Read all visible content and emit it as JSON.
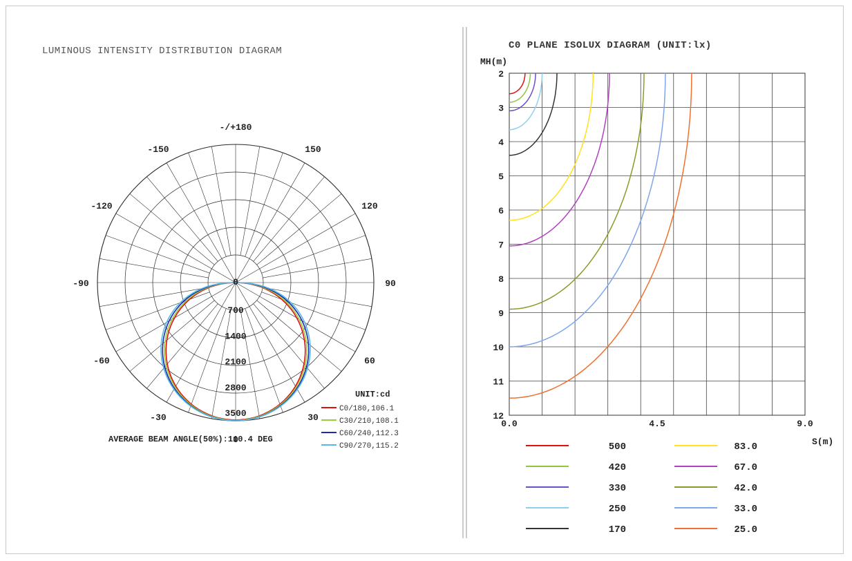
{
  "colors": {
    "background": "#ffffff",
    "grid": "#2a2a2a",
    "frame": "#c8c8c8",
    "divider": "#9a9a9a"
  },
  "chart_data": [
    {
      "type": "polar",
      "title": "LUMINOUS INTENSITY DISTRIBUTION DIAGRAM",
      "angle_labels": [
        {
          "angle": 180,
          "label": "-/+180"
        },
        {
          "angle": -150,
          "label": "-150"
        },
        {
          "angle": 150,
          "label": "150"
        },
        {
          "angle": -120,
          "label": "-120"
        },
        {
          "angle": 120,
          "label": "120"
        },
        {
          "angle": -90,
          "label": "-90"
        },
        {
          "angle": 90,
          "label": "90"
        },
        {
          "angle": -60,
          "label": "-60"
        },
        {
          "angle": 60,
          "label": "60"
        },
        {
          "angle": -30,
          "label": "-30"
        },
        {
          "angle": 30,
          "label": "30"
        },
        {
          "angle": 0,
          "label": "0"
        }
      ],
      "radial_ticks": [
        "0",
        "700",
        "1400",
        "2100",
        "2800",
        "3500"
      ],
      "rmax": 3500,
      "unit": "UNIT:cd",
      "series": [
        {
          "name": "C0/180,106.1",
          "color": "#e01010",
          "peak": 3480,
          "spread": 1.04
        },
        {
          "name": "C30/210,108.1",
          "color": "#9ccc3a",
          "peak": 3490,
          "spread": 1.1
        },
        {
          "name": "C60/240,112.3",
          "color": "#1a2aa8",
          "peak": 3500,
          "spread": 1.18
        },
        {
          "name": "C90/270,115.2",
          "color": "#59b8e8",
          "peak": 3500,
          "spread": 1.26
        }
      ],
      "footer": "AVERAGE BEAM ANGLE(50%):110.4 DEG"
    },
    {
      "type": "line",
      "title": "C0 PLANE ISOLUX DIAGRAM (UNIT:lx)",
      "ylabel": "MH(m)",
      "xlabel": "S(m)",
      "y_ticks": [
        "2",
        "3",
        "4",
        "5",
        "6",
        "7",
        "8",
        "9",
        "10",
        "11",
        "12"
      ],
      "x_ticks": [
        "0.0",
        "4.5",
        "9.0"
      ],
      "ylim": [
        2,
        12
      ],
      "xlim": [
        0,
        9
      ],
      "series": [
        {
          "name": "500",
          "color": "#e01010",
          "h0": 2.6,
          "rx": 0.48
        },
        {
          "name": "420",
          "color": "#8ec63f",
          "h0": 2.85,
          "rx": 0.64
        },
        {
          "name": "330",
          "color": "#6a50c8",
          "h0": 3.1,
          "rx": 0.8
        },
        {
          "name": "250",
          "color": "#8fd0f0",
          "h0": 3.65,
          "rx": 1.0
        },
        {
          "name": "170",
          "color": "#333333",
          "h0": 4.4,
          "rx": 1.45
        },
        {
          "name": "83.0",
          "color": "#ffe21a",
          "h0": 6.3,
          "rx": 2.55
        },
        {
          "name": "67.0",
          "color": "#b040c0",
          "h0": 7.05,
          "rx": 3.05
        },
        {
          "name": "42.0",
          "color": "#8a9a2a",
          "h0": 8.9,
          "rx": 4.1
        },
        {
          "name": "33.0",
          "color": "#7ea6ea",
          "h0": 10.0,
          "rx": 4.75
        },
        {
          "name": "25.0",
          "color": "#f07030",
          "h0": 11.5,
          "rx": 5.55
        }
      ]
    }
  ]
}
